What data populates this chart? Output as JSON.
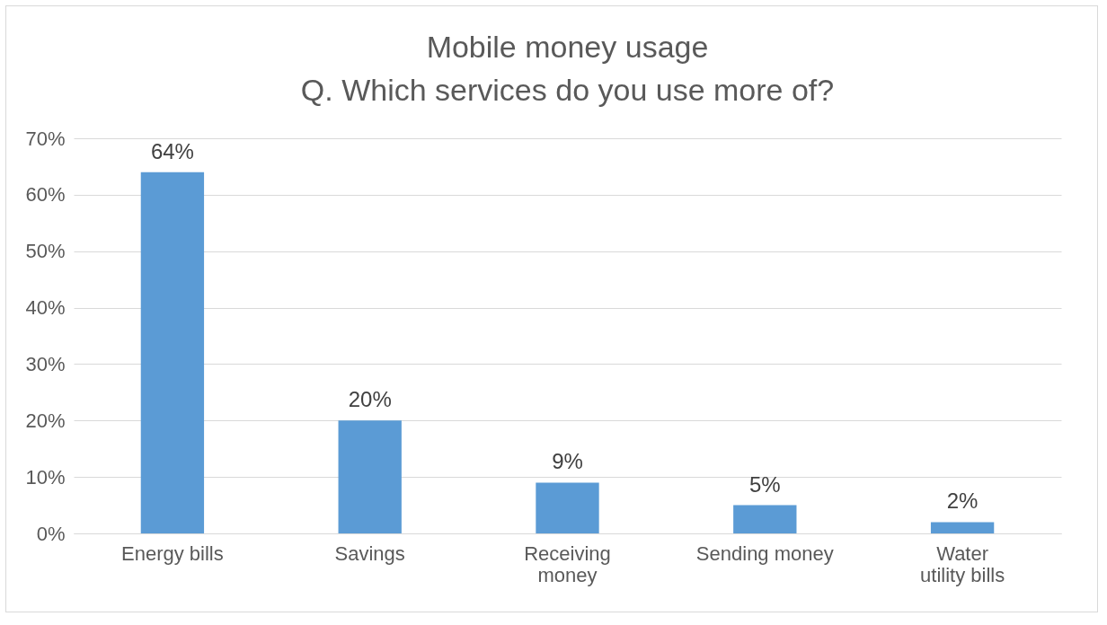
{
  "chart_data": {
    "type": "bar",
    "title": "Mobile money usage",
    "subtitle": "Q. Which services do you use more of?",
    "categories": [
      "Energy bills",
      "Savings",
      "Receiving money",
      "Sending money",
      "Water utility bills"
    ],
    "values": [
      64,
      20,
      9,
      5,
      2
    ],
    "value_labels": [
      "64%",
      "20%",
      "9%",
      "5%",
      "2%"
    ],
    "color": "#5b9bd5",
    "ylim": [
      0,
      70
    ],
    "yticks": [
      {
        "value": 0,
        "label": "0%"
      },
      {
        "value": 10,
        "label": "10%"
      },
      {
        "value": 20,
        "label": "20%"
      },
      {
        "value": 30,
        "label": "30%"
      },
      {
        "value": 40,
        "label": "40%"
      },
      {
        "value": 50,
        "label": "50%"
      },
      {
        "value": 60,
        "label": "60%"
      },
      {
        "value": 70,
        "label": "70%"
      }
    ],
    "grid": "y"
  }
}
